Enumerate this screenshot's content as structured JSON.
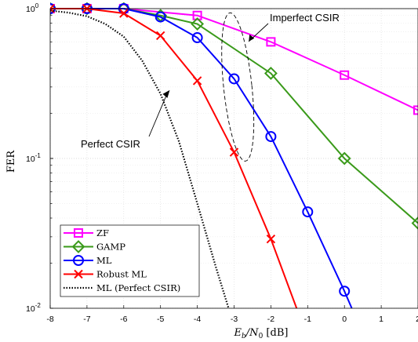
{
  "chart_data": {
    "type": "line",
    "xlabel_main": "E",
    "xlabel_sub_b": "b",
    "xlabel_mid": "/N",
    "xlabel_sub_0": "0",
    "xlabel_unit": " [dB]",
    "ylabel": "FER",
    "xlim": [
      -8,
      2
    ],
    "ylim": [
      0.01,
      1
    ],
    "yscale": "log",
    "grid": true,
    "x_ticks": [
      -8,
      -7,
      -6,
      -5,
      -4,
      -3,
      -2,
      -1,
      0,
      1,
      2
    ],
    "x_tick_labels": [
      "-8",
      "-7",
      "-6",
      "-5",
      "-4",
      "-3",
      "-2",
      "-1",
      "0",
      "1",
      "2"
    ],
    "y_ticks": [
      {
        "base": "10",
        "exp": "0",
        "value": 1
      },
      {
        "base": "10",
        "exp": "-1",
        "value": 0.1
      },
      {
        "base": "10",
        "exp": "-2",
        "value": 0.01
      }
    ],
    "series": [
      {
        "name": "ZF",
        "color": "#ff00ff",
        "marker": "square",
        "dash": "solid",
        "x": [
          -8,
          -7,
          -6,
          -4,
          -2,
          0,
          2
        ],
        "y": [
          1.0,
          1.0,
          1.0,
          0.9,
          0.6,
          0.36,
          0.21
        ]
      },
      {
        "name": "GAMP",
        "color": "#3a9a1a",
        "marker": "diamond",
        "dash": "solid",
        "x": [
          -8,
          -7,
          -6,
          -5,
          -4,
          -2,
          0,
          2
        ],
        "y": [
          1.0,
          1.0,
          1.0,
          0.9,
          0.79,
          0.37,
          0.1,
          0.037
        ]
      },
      {
        "name": "ML",
        "color": "#0000ff",
        "marker": "circle",
        "dash": "solid",
        "x": [
          -8,
          -7,
          -6,
          -5,
          -4,
          -3,
          -2,
          -1,
          0,
          0.2
        ],
        "y": [
          1.0,
          1.0,
          1.0,
          0.88,
          0.64,
          0.34,
          0.14,
          0.044,
          0.013,
          0.01
        ]
      },
      {
        "name": "Robust ML",
        "color": "#ff0000",
        "marker": "x",
        "dash": "solid",
        "x": [
          -8,
          -7,
          -6,
          -5,
          -4,
          -3,
          -2,
          -1.3
        ],
        "y": [
          1.0,
          1.0,
          0.93,
          0.66,
          0.33,
          0.11,
          0.029,
          0.01
        ]
      },
      {
        "name": "ML (Perfect CSIR)",
        "color": "#000000",
        "marker": "none",
        "dash": "dotted",
        "x": [
          -8,
          -7.5,
          -7,
          -6.5,
          -6,
          -5.5,
          -5,
          -4.5,
          -4,
          -3.5,
          -3.15
        ],
        "y": [
          0.97,
          0.94,
          0.89,
          0.79,
          0.65,
          0.45,
          0.27,
          0.13,
          0.05,
          0.019,
          0.01
        ]
      }
    ],
    "annotations": [
      {
        "text": "Imperfect CSIR",
        "kind": "ellipse",
        "center_x": -2.9,
        "center_y": 0.3
      },
      {
        "text": "Perfect CSIR",
        "kind": "arrow",
        "target_x": -4.75,
        "target_y": 0.3
      }
    ],
    "legend_position": "bottom-left"
  }
}
